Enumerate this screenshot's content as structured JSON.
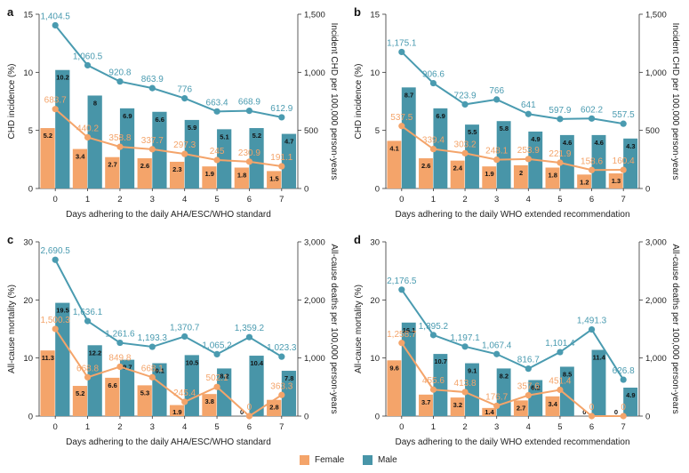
{
  "colors": {
    "female_bar": "#f4a46a",
    "male_bar": "#4895a8",
    "male_line": "#4a9bb0",
    "female_line": "#f4a46a"
  },
  "legend": {
    "female": "Female",
    "male": "Male"
  },
  "chart_data": [
    {
      "type": "bar",
      "panel": "a",
      "xlabel": "Days adhering to the daily AHA/ESC/WHO standard",
      "ylabel": "CHD incidence (%)",
      "y2label": "Incident CHD per 100,000 person-years",
      "categories": [
        "0",
        "1",
        "2",
        "3",
        "4",
        "5",
        "6",
        "7"
      ],
      "ylim": [
        0,
        15
      ],
      "yticks": [
        "0",
        "5",
        "10",
        "15"
      ],
      "y2lim": [
        0,
        1500
      ],
      "y2ticks": [
        "0",
        "500",
        "1,000",
        "1,500"
      ],
      "bar_series": [
        {
          "name": "Female",
          "values": [
            5.2,
            3.4,
            2.7,
            2.6,
            2.3,
            1.9,
            1.8,
            1.5
          ],
          "labels": [
            "5.2",
            "3.4",
            "2.7",
            "2.6",
            "2.3",
            "1.9",
            "1.8",
            "1.5"
          ]
        },
        {
          "name": "Male",
          "values": [
            10.2,
            8,
            6.9,
            6.6,
            5.9,
            5.1,
            5.2,
            4.7
          ],
          "labels": [
            "10.2",
            "8",
            "6.9",
            "6.6",
            "5.9",
            "5.1",
            "5.2",
            "4.7"
          ]
        }
      ],
      "line_series": [
        {
          "name": "Male",
          "values": [
            1404.5,
            1060.5,
            920.8,
            863.9,
            776,
            663.4,
            668.9,
            612.9
          ],
          "labels": [
            "1,404.5",
            "1,060.5",
            "920.8",
            "863.9",
            "776",
            "663.4",
            "668.9",
            "612.9"
          ]
        },
        {
          "name": "Female",
          "values": [
            683.7,
            440.2,
            358.8,
            337.7,
            297.3,
            245,
            230.9,
            191.1
          ],
          "labels": [
            "683.7",
            "440.2",
            "358.8",
            "337.7",
            "297.3",
            "245",
            "230.9",
            "191.1"
          ]
        }
      ]
    },
    {
      "type": "bar",
      "panel": "b",
      "xlabel": "Days adhering to the daily WHO extended recommendation",
      "ylabel": "CHD incidence (%)",
      "y2label": "Incident CHD per 100,000 person-years",
      "categories": [
        "0",
        "1",
        "2",
        "3",
        "4",
        "5",
        "6",
        "7"
      ],
      "ylim": [
        0,
        15
      ],
      "yticks": [
        "0",
        "5",
        "10",
        "15"
      ],
      "y2lim": [
        0,
        1500
      ],
      "y2ticks": [
        "0",
        "500",
        "1,000",
        "1,500"
      ],
      "bar_series": [
        {
          "name": "Female",
          "values": [
            4.1,
            2.6,
            2.4,
            1.9,
            2,
            1.8,
            1.2,
            1.3
          ],
          "labels": [
            "4.1",
            "2.6",
            "2.4",
            "1.9",
            "2",
            "1.8",
            "1.2",
            "1.3"
          ]
        },
        {
          "name": "Male",
          "values": [
            8.7,
            6.9,
            5.5,
            5.8,
            4.9,
            4.6,
            4.6,
            4.3
          ],
          "labels": [
            "8.7",
            "6.9",
            "5.5",
            "5.8",
            "4.9",
            "4.6",
            "4.6",
            "4.3"
          ]
        }
      ],
      "line_series": [
        {
          "name": "Male",
          "values": [
            1175.1,
            906.6,
            723.9,
            766,
            641,
            597.9,
            602.2,
            557.5
          ],
          "labels": [
            "1,175.1",
            "906.6",
            "723.9",
            "766",
            "641",
            "597.9",
            "602.2",
            "557.5"
          ]
        },
        {
          "name": "Female",
          "values": [
            537.5,
            339.4,
            303.2,
            248.1,
            253.9,
            221.9,
            158.6,
            160.4
          ],
          "labels": [
            "537.5",
            "339.4",
            "303.2",
            "248.1",
            "253.9",
            "221.9",
            "158.6",
            "160.4"
          ]
        }
      ]
    },
    {
      "type": "bar",
      "panel": "c",
      "xlabel": "Days adhering to the daily AHA/ESC/WHO standard",
      "ylabel": "All-cause mortality (%)",
      "y2label": "All-cause deaths per 100,000 person-years",
      "categories": [
        "0",
        "1",
        "2",
        "3",
        "4",
        "5",
        "6",
        "7"
      ],
      "ylim": [
        0,
        30
      ],
      "yticks": [
        "0",
        "10",
        "20",
        "30"
      ],
      "y2lim": [
        0,
        3000
      ],
      "y2ticks": [
        "0",
        "1,000",
        "2,000",
        "3,000"
      ],
      "bar_series": [
        {
          "name": "Female",
          "values": [
            11.3,
            5.2,
            6.6,
            5.3,
            1.9,
            3.8,
            0,
            2.8
          ],
          "labels": [
            "11.3",
            "5.2",
            "6.6",
            "5.3",
            "1.9",
            "3.8",
            "0",
            "2.8"
          ]
        },
        {
          "name": "Male",
          "values": [
            19.5,
            12.2,
            9.7,
            9.1,
            10.5,
            8.2,
            10.4,
            7.8
          ],
          "labels": [
            "19.5",
            "12.2",
            "9.7",
            "9.1",
            "10.5",
            "8.2",
            "10.4",
            "7.8"
          ]
        }
      ],
      "line_series": [
        {
          "name": "Male",
          "values": [
            2690.5,
            1636.1,
            1261.6,
            1193.3,
            1370.7,
            1065.2,
            1359.2,
            1023.3
          ],
          "labels": [
            "2,690.5",
            "1,636.1",
            "1,261.6",
            "1,193.3",
            "1,370.7",
            "1,065.2",
            "1,359.2",
            "1,023.3"
          ]
        },
        {
          "name": "Female",
          "values": [
            1500.3,
            668.8,
            849.8,
            668.1,
            245.4,
            502.1,
            0,
            363.3
          ],
          "labels": [
            "1,500.3",
            "668.8",
            "849.8",
            "668.1",
            "245.4",
            "502.1",
            "0",
            "363.3"
          ]
        }
      ]
    },
    {
      "type": "bar",
      "panel": "d",
      "xlabel": "Days adhering to the daily WHO extended recommendation",
      "ylabel": "All-cause mortality (%)",
      "y2label": "All-cause deaths per 100,000 person-years",
      "categories": [
        "0",
        "1",
        "2",
        "3",
        "4",
        "5",
        "6",
        "7"
      ],
      "ylim": [
        0,
        30
      ],
      "yticks": [
        "0",
        "10",
        "20",
        "30"
      ],
      "y2lim": [
        0,
        3000
      ],
      "y2ticks": [
        "0",
        "1,000",
        "2,000",
        "3,000"
      ],
      "bar_series": [
        {
          "name": "Female",
          "values": [
            9.6,
            3.7,
            3.2,
            1.4,
            2.7,
            3.4,
            0,
            0
          ],
          "labels": [
            "9.6",
            "3.7",
            "3.2",
            "1.4",
            "2.7",
            "3.4",
            "0",
            "0"
          ]
        },
        {
          "name": "Male",
          "values": [
            16.1,
            10.7,
            9.1,
            8.2,
            6.2,
            8.5,
            11.4,
            4.9
          ],
          "labels": [
            "16.1",
            "10.7",
            "9.1",
            "8.2",
            "6.2",
            "8.5",
            "11.4",
            "4.9"
          ]
        }
      ],
      "line_series": [
        {
          "name": "Male",
          "values": [
            2176.5,
            1395.2,
            1197.1,
            1067.4,
            816.7,
            1101.4,
            1491.3,
            626.8
          ],
          "labels": [
            "2,176.5",
            "1,395.2",
            "1,197.1",
            "1,067.4",
            "816.7",
            "1,101.4",
            "1,491.3",
            "626.8"
          ]
        },
        {
          "name": "Female",
          "values": [
            1258.7,
            455.6,
            413.8,
            176.7,
            357.6,
            451.4,
            0,
            0
          ],
          "labels": [
            "1,258.7",
            "455.6",
            "413.8",
            "176.7",
            "357.6",
            "451.4",
            "0",
            "0"
          ]
        }
      ]
    }
  ]
}
